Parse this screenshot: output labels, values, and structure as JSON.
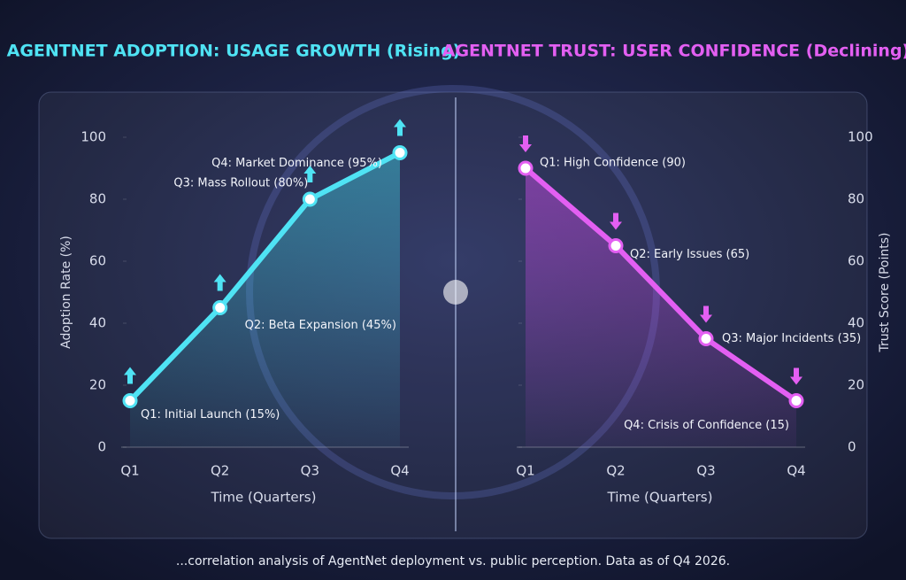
{
  "chart_data": [
    {
      "type": "line",
      "title": "AGENTNET ADOPTION: USAGE GROWTH (Rising)",
      "x_label": "Time (Quarters)",
      "y_label": "Adoption Rate (%)",
      "categories": [
        "Q1",
        "Q2",
        "Q3",
        "Q4"
      ],
      "values": [
        15,
        45,
        80,
        95
      ],
      "value_labels": [
        "Q1: Initial Launch (15%)",
        "Q2: Beta Expansion (45%)",
        "Q3: Mass Rollout (80%)",
        "Q4: Market Dominance (95%)"
      ],
      "color": "#4fe3f4",
      "ylim": [
        0,
        100
      ],
      "yticks": [
        0,
        20,
        40,
        60,
        80,
        100
      ],
      "y_axis_side": "left"
    },
    {
      "type": "line",
      "title": "AGENTNET TRUST: USER CONFIDENCE (Declining)",
      "x_label": "Time (Quarters)",
      "y_label": "Trust Score (Points)",
      "categories": [
        "Q1",
        "Q2",
        "Q3",
        "Q4"
      ],
      "values": [
        90,
        65,
        35,
        15
      ],
      "value_labels": [
        "Q1: High Confidence (90)",
        "Q2: Early Issues (65)",
        "Q3: Major Incidents (35)",
        "Q4: Crisis of Confidence (15)"
      ],
      "color": "#e35ff2",
      "ylim": [
        0,
        100
      ],
      "yticks": [
        0,
        20,
        40,
        60,
        80,
        100
      ],
      "y_axis_side": "right"
    }
  ],
  "footer": "...correlation analysis of AgentNet deployment vs. public perception. Data as of Q4 2026."
}
